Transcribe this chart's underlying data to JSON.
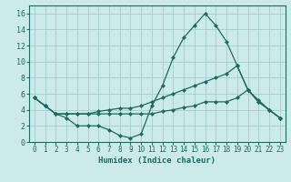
{
  "title": "",
  "xlabel": "Humidex (Indice chaleur)",
  "ylabel": "",
  "bg_color": "#cceaea",
  "grid_color": "#aad0d0",
  "line_color": "#1a6b60",
  "xlim": [
    -0.5,
    23.5
  ],
  "ylim": [
    0,
    17
  ],
  "xticks": [
    0,
    1,
    2,
    3,
    4,
    5,
    6,
    7,
    8,
    9,
    10,
    11,
    12,
    13,
    14,
    15,
    16,
    17,
    18,
    19,
    20,
    21,
    22,
    23
  ],
  "yticks": [
    0,
    2,
    4,
    6,
    8,
    10,
    12,
    14,
    16
  ],
  "series": [
    {
      "x": [
        0,
        1,
        2,
        3,
        4,
        5,
        6,
        7,
        8,
        9,
        10,
        11,
        12,
        13,
        14,
        15,
        16,
        17,
        18,
        19,
        20,
        21,
        22,
        23
      ],
      "y": [
        5.5,
        4.5,
        3.5,
        3.0,
        2.0,
        2.0,
        2.0,
        1.5,
        0.8,
        0.5,
        1.0,
        4.5,
        7.0,
        10.5,
        13.0,
        14.5,
        16.0,
        14.5,
        12.5,
        9.5,
        6.5,
        5.2,
        4.0,
        3.0
      ]
    },
    {
      "x": [
        0,
        1,
        2,
        3,
        4,
        5,
        6,
        7,
        8,
        9,
        10,
        11,
        12,
        13,
        14,
        15,
        16,
        17,
        18,
        19,
        20,
        21,
        22,
        23
      ],
      "y": [
        5.5,
        4.5,
        3.5,
        3.5,
        3.5,
        3.5,
        3.8,
        4.0,
        4.2,
        4.2,
        4.5,
        5.0,
        5.5,
        6.0,
        6.5,
        7.0,
        7.5,
        8.0,
        8.5,
        9.5,
        6.5,
        5.0,
        4.0,
        3.0
      ]
    },
    {
      "x": [
        0,
        1,
        2,
        3,
        4,
        5,
        6,
        7,
        8,
        9,
        10,
        11,
        12,
        13,
        14,
        15,
        16,
        17,
        18,
        19,
        20,
        21,
        22,
        23
      ],
      "y": [
        5.5,
        4.5,
        3.5,
        3.5,
        3.5,
        3.5,
        3.5,
        3.5,
        3.5,
        3.5,
        3.5,
        3.5,
        3.8,
        4.0,
        4.3,
        4.5,
        5.0,
        5.0,
        5.0,
        5.5,
        6.5,
        5.0,
        4.0,
        3.0
      ]
    }
  ]
}
